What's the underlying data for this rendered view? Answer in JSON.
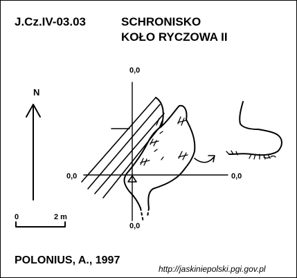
{
  "header": {
    "cave_id": "J.Cz.IV-03.03",
    "title_line1": "SCHRONISKO",
    "title_line2": "KOŁO RYCZOWA II"
  },
  "grid": {
    "top_label": "0,0",
    "left_label": "0,0",
    "right_label": "0,0",
    "bottom_label": "0,0"
  },
  "north_label": "N",
  "scale": {
    "zero_label": "0",
    "length_label": "2 m"
  },
  "author": "POLONIUS, A., 1997",
  "source_url": "http://jaskiniepolski.pgi.gov.pl",
  "colors": {
    "ink": "#000000",
    "background": "#ffffff"
  }
}
